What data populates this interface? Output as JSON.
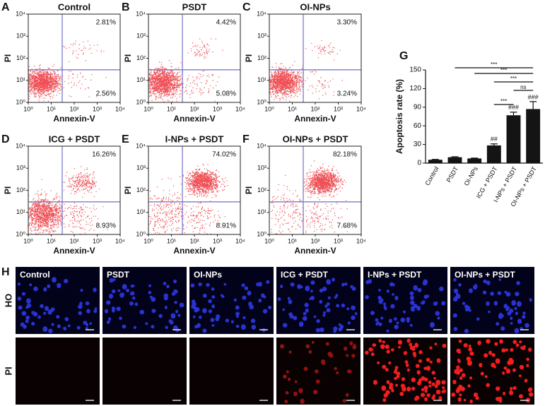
{
  "chart_data": [
    {
      "type": "flow",
      "panel_label": "A",
      "title": "Control",
      "xlabel": "Annexin-V",
      "ylabel": "PI",
      "log_scale": true,
      "xlim": [
        1,
        10000
      ],
      "ylim": [
        1,
        10000
      ],
      "xticks": [
        {
          "value": 1,
          "label": "10⁰"
        },
        {
          "value": 10,
          "label": "10¹"
        },
        {
          "value": 100,
          "label": "10²"
        },
        {
          "value": 1000,
          "label": "10³"
        },
        {
          "value": 10000,
          "label": "10⁴"
        }
      ],
      "yticks": [
        {
          "value": 1,
          "label": "10⁰"
        },
        {
          "value": 10,
          "label": "10¹"
        },
        {
          "value": 100,
          "label": "10²"
        },
        {
          "value": 1000,
          "label": "10³"
        },
        {
          "value": 10000,
          "label": "10⁴"
        }
      ],
      "gate_x": 30,
      "gate_y": 30,
      "color": "#e8141c",
      "values": [
        2.81,
        2.56
      ],
      "value_labels": [
        "2.81%",
        "2.56%"
      ]
    },
    {
      "type": "flow",
      "panel_label": "B",
      "title": "PSDT",
      "xlabel": "Annexin-V",
      "ylabel": "PI",
      "log_scale": true,
      "xlim": [
        1,
        10000
      ],
      "ylim": [
        1,
        10000
      ],
      "xticks": [
        {
          "value": 1,
          "label": "10⁰"
        },
        {
          "value": 10,
          "label": "10¹"
        },
        {
          "value": 100,
          "label": "10²"
        },
        {
          "value": 1000,
          "label": "10³"
        },
        {
          "value": 10000,
          "label": "10⁴"
        }
      ],
      "yticks": [
        {
          "value": 1,
          "label": "10⁰"
        },
        {
          "value": 10,
          "label": "10¹"
        },
        {
          "value": 100,
          "label": "10²"
        },
        {
          "value": 1000,
          "label": "10³"
        },
        {
          "value": 10000,
          "label": "10⁴"
        }
      ],
      "gate_x": 30,
      "gate_y": 30,
      "color": "#e8141c",
      "values": [
        4.42,
        5.08
      ],
      "value_labels": [
        "4.42%",
        "5.08%"
      ]
    },
    {
      "type": "flow",
      "panel_label": "C",
      "title": "OI-NPs",
      "xlabel": "Annexin-V",
      "ylabel": "PI",
      "log_scale": true,
      "xlim": [
        1,
        10000
      ],
      "ylim": [
        1,
        10000
      ],
      "xticks": [
        {
          "value": 1,
          "label": "10⁰"
        },
        {
          "value": 10,
          "label": "10¹"
        },
        {
          "value": 100,
          "label": "10²"
        },
        {
          "value": 1000,
          "label": "10³"
        },
        {
          "value": 10000,
          "label": "10⁴"
        }
      ],
      "yticks": [
        {
          "value": 1,
          "label": "10⁰"
        },
        {
          "value": 10,
          "label": "10¹"
        },
        {
          "value": 100,
          "label": "10²"
        },
        {
          "value": 1000,
          "label": "10³"
        },
        {
          "value": 10000,
          "label": "10⁴"
        }
      ],
      "gate_x": 30,
      "gate_y": 30,
      "color": "#e8141c",
      "values": [
        3.3,
        3.24
      ],
      "value_labels": [
        "3.30%",
        "3.24%"
      ]
    },
    {
      "type": "flow",
      "panel_label": "D",
      "title": "ICG + PSDT",
      "xlabel": "Annexin-V",
      "ylabel": "PI",
      "log_scale": true,
      "xlim": [
        1,
        10000
      ],
      "ylim": [
        1,
        10000
      ],
      "xticks": [
        {
          "value": 1,
          "label": "10⁰"
        },
        {
          "value": 10,
          "label": "10¹"
        },
        {
          "value": 100,
          "label": "10²"
        },
        {
          "value": 1000,
          "label": "10³"
        },
        {
          "value": 10000,
          "label": "10⁴"
        }
      ],
      "yticks": [
        {
          "value": 1,
          "label": "10⁰"
        },
        {
          "value": 10,
          "label": "10¹"
        },
        {
          "value": 100,
          "label": "10²"
        },
        {
          "value": 1000,
          "label": "10³"
        },
        {
          "value": 10000,
          "label": "10⁴"
        }
      ],
      "gate_x": 30,
      "gate_y": 30,
      "color": "#e8141c",
      "values": [
        16.26,
        8.93
      ],
      "value_labels": [
        "16.26%",
        "8.93%"
      ]
    },
    {
      "type": "flow",
      "panel_label": "E",
      "title": "I-NPs + PSDT",
      "xlabel": "Annexin-V",
      "ylabel": "PI",
      "log_scale": true,
      "xlim": [
        1,
        10000
      ],
      "ylim": [
        1,
        10000
      ],
      "xticks": [
        {
          "value": 1,
          "label": "10⁰"
        },
        {
          "value": 10,
          "label": "10¹"
        },
        {
          "value": 100,
          "label": "10²"
        },
        {
          "value": 1000,
          "label": "10³"
        },
        {
          "value": 10000,
          "label": "10⁴"
        }
      ],
      "yticks": [
        {
          "value": 1,
          "label": "10⁰"
        },
        {
          "value": 10,
          "label": "10¹"
        },
        {
          "value": 100,
          "label": "10²"
        },
        {
          "value": 1000,
          "label": "10³"
        },
        {
          "value": 10000,
          "label": "10⁴"
        }
      ],
      "gate_x": 30,
      "gate_y": 30,
      "color": "#e8141c",
      "values": [
        74.02,
        8.91
      ],
      "value_labels": [
        "74.02%",
        "8.91%"
      ]
    },
    {
      "type": "flow",
      "panel_label": "F",
      "title": "OI-NPs + PSDT",
      "xlabel": "Annexin-V",
      "ylabel": "PI",
      "log_scale": true,
      "xlim": [
        1,
        10000
      ],
      "ylim": [
        1,
        10000
      ],
      "xticks": [
        {
          "value": 1,
          "label": "10⁰"
        },
        {
          "value": 10,
          "label": "10¹"
        },
        {
          "value": 100,
          "label": "10²"
        },
        {
          "value": 1000,
          "label": "10³"
        },
        {
          "value": 10000,
          "label": "10⁴"
        }
      ],
      "yticks": [
        {
          "value": 1,
          "label": "10⁰"
        },
        {
          "value": 10,
          "label": "10¹"
        },
        {
          "value": 100,
          "label": "10²"
        },
        {
          "value": 1000,
          "label": "10³"
        },
        {
          "value": 10000,
          "label": "10⁴"
        }
      ],
      "gate_x": 30,
      "gate_y": 30,
      "color": "#e8141c",
      "values": [
        82.18,
        7.68
      ],
      "value_labels": [
        "82.18%",
        "7.68%"
      ]
    },
    {
      "type": "bar",
      "panel_label": "G",
      "ylabel": "Apoptosis rate (%)",
      "color": "#141414",
      "categories": [
        "Control",
        "PSDT",
        "OI-NPs",
        "ICG + PSDT",
        "I-NPs + PSDT",
        "OI-NPs + PSDT"
      ],
      "values": [
        5.4,
        9.5,
        7.5,
        28.5,
        77,
        87
      ],
      "errors": [
        0.6,
        0.8,
        0.6,
        2.5,
        5,
        12
      ],
      "annotations": [
        null,
        null,
        null,
        "##",
        "###",
        "###"
      ],
      "comparisons": [
        {
          "from": 1,
          "to": 5,
          "label": "***"
        },
        {
          "from": 2,
          "to": 5,
          "label": "***"
        },
        {
          "from": 3,
          "to": 5,
          "label": "***"
        },
        {
          "from": 4,
          "to": 5,
          "label": "ns"
        },
        {
          "from": 3,
          "to": 4,
          "label": "***"
        }
      ],
      "ylim": [
        0,
        150
      ],
      "yticks": [
        0,
        30,
        60,
        90,
        120,
        150
      ]
    }
  ],
  "image_panel": {
    "panel_label": "H",
    "columns": [
      "Control",
      "PSDT",
      "OI-NPs",
      "ICG + PSDT",
      "I-NPs + PSDT",
      "OI-NPs + PSDT"
    ],
    "rows": [
      "HO",
      "PI"
    ]
  }
}
